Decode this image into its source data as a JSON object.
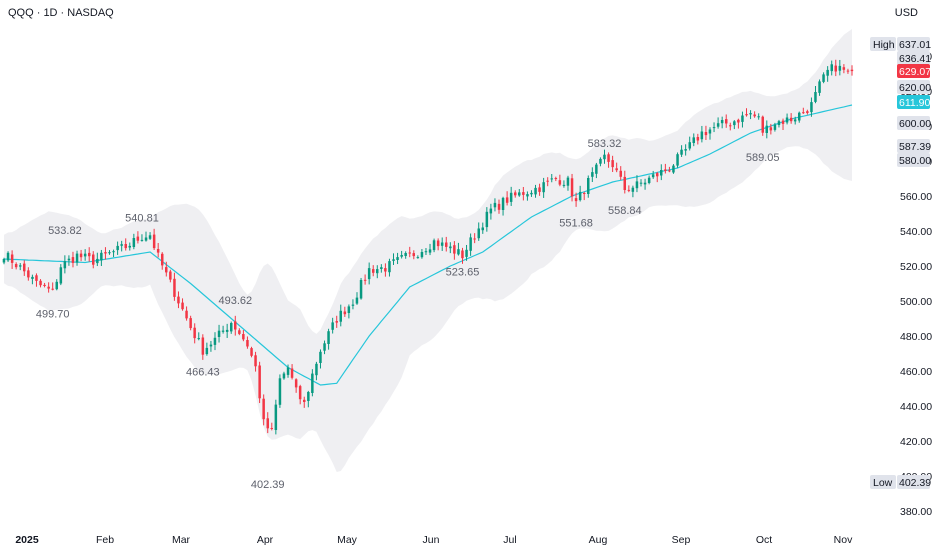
{
  "chart_data": {
    "type": "candlestick",
    "title": "QQQ · 1D · NASDAQ",
    "currency": "USD",
    "x_labels": [
      "2025",
      "Feb",
      "Mar",
      "Apr",
      "May",
      "Jun",
      "Jul",
      "Aug",
      "Sep",
      "Oct",
      "Nov"
    ],
    "y_ticks": [
      380,
      400,
      420,
      440,
      460,
      480,
      500,
      520,
      540,
      560,
      580,
      600,
      620,
      640
    ],
    "ylim": [
      372,
      648
    ],
    "bars": 210,
    "line_color": "#26c6da",
    "up_color": "#089981",
    "down_color": "#f23645",
    "band_color": "#e9eaee",
    "price_labels": [
      {
        "label": "High",
        "value": "637.01"
      },
      {
        "value": "636.41"
      },
      {
        "value": "629.07",
        "bg": "#f23645"
      },
      {
        "value": "620.00"
      },
      {
        "value": "611.90",
        "bg": "#26c6da"
      },
      {
        "value": "600.00"
      },
      {
        "value": "587.39"
      },
      {
        "value": "580.00"
      },
      {
        "label": "Low",
        "value": "402.39"
      }
    ],
    "annotations": [
      {
        "text": "533.82",
        "bar": 15,
        "price": 533.82,
        "pos": "above"
      },
      {
        "text": "540.81",
        "bar": 34,
        "price": 540.81,
        "pos": "above"
      },
      {
        "text": "499.70",
        "bar": 12,
        "price": 499.7,
        "pos": "below"
      },
      {
        "text": "466.43",
        "bar": 49,
        "price": 466.43,
        "pos": "below"
      },
      {
        "text": "493.62",
        "bar": 57,
        "price": 493.62,
        "pos": "above"
      },
      {
        "text": "402.39",
        "bar": 65,
        "price": 402.39,
        "pos": "below"
      },
      {
        "text": "523.65",
        "bar": 113,
        "price": 523.65,
        "pos": "below"
      },
      {
        "text": "551.68",
        "bar": 141,
        "price": 551.68,
        "pos": "below"
      },
      {
        "text": "583.32",
        "bar": 148,
        "price": 583.32,
        "pos": "above"
      },
      {
        "text": "558.84",
        "bar": 153,
        "price": 558.84,
        "pos": "below"
      },
      {
        "text": "589.05",
        "bar": 187,
        "price": 589.05,
        "pos": "below"
      }
    ],
    "anchors": [
      [
        0,
        527
      ],
      [
        4,
        519
      ],
      [
        8,
        510
      ],
      [
        12,
        505
      ],
      [
        14,
        520
      ],
      [
        18,
        526
      ],
      [
        22,
        523
      ],
      [
        26,
        527
      ],
      [
        30,
        531
      ],
      [
        34,
        537
      ],
      [
        36,
        538
      ],
      [
        38,
        525
      ],
      [
        42,
        505
      ],
      [
        46,
        485
      ],
      [
        49,
        472
      ],
      [
        52,
        478
      ],
      [
        56,
        488
      ],
      [
        58,
        482
      ],
      [
        60,
        475
      ],
      [
        62,
        462
      ],
      [
        64,
        430
      ],
      [
        66,
        425
      ],
      [
        68,
        455
      ],
      [
        70,
        462
      ],
      [
        72,
        448
      ],
      [
        74,
        441
      ],
      [
        76,
        458
      ],
      [
        78,
        472
      ],
      [
        82,
        490
      ],
      [
        86,
        500
      ],
      [
        90,
        518
      ],
      [
        94,
        519
      ],
      [
        98,
        524
      ],
      [
        102,
        528
      ],
      [
        106,
        534
      ],
      [
        110,
        530
      ],
      [
        113,
        526
      ],
      [
        116,
        538
      ],
      [
        120,
        552
      ],
      [
        124,
        558
      ],
      [
        128,
        562
      ],
      [
        132,
        565
      ],
      [
        136,
        570
      ],
      [
        139,
        568
      ],
      [
        141,
        556
      ],
      [
        144,
        568
      ],
      [
        148,
        582
      ],
      [
        150,
        578
      ],
      [
        153,
        564
      ],
      [
        156,
        566
      ],
      [
        160,
        571
      ],
      [
        164,
        576
      ],
      [
        168,
        586
      ],
      [
        172,
        596
      ],
      [
        176,
        600
      ],
      [
        180,
        603
      ],
      [
        184,
        607
      ],
      [
        186,
        604
      ],
      [
        187,
        597
      ],
      [
        190,
        602
      ],
      [
        194,
        604
      ],
      [
        197,
        608
      ],
      [
        199,
        612
      ],
      [
        201,
        623
      ],
      [
        203,
        631
      ],
      [
        205,
        634
      ],
      [
        209,
        629
      ]
    ],
    "ma_anchors": [
      [
        0,
        524
      ],
      [
        20,
        522
      ],
      [
        36,
        528
      ],
      [
        46,
        510
      ],
      [
        58,
        486
      ],
      [
        70,
        462
      ],
      [
        78,
        452
      ],
      [
        82,
        453
      ],
      [
        90,
        480
      ],
      [
        100,
        508
      ],
      [
        110,
        520
      ],
      [
        118,
        528
      ],
      [
        130,
        548
      ],
      [
        140,
        560
      ],
      [
        150,
        568
      ],
      [
        158,
        572
      ],
      [
        166,
        576
      ],
      [
        174,
        584
      ],
      [
        184,
        596
      ],
      [
        194,
        604
      ],
      [
        209,
        612
      ]
    ]
  }
}
